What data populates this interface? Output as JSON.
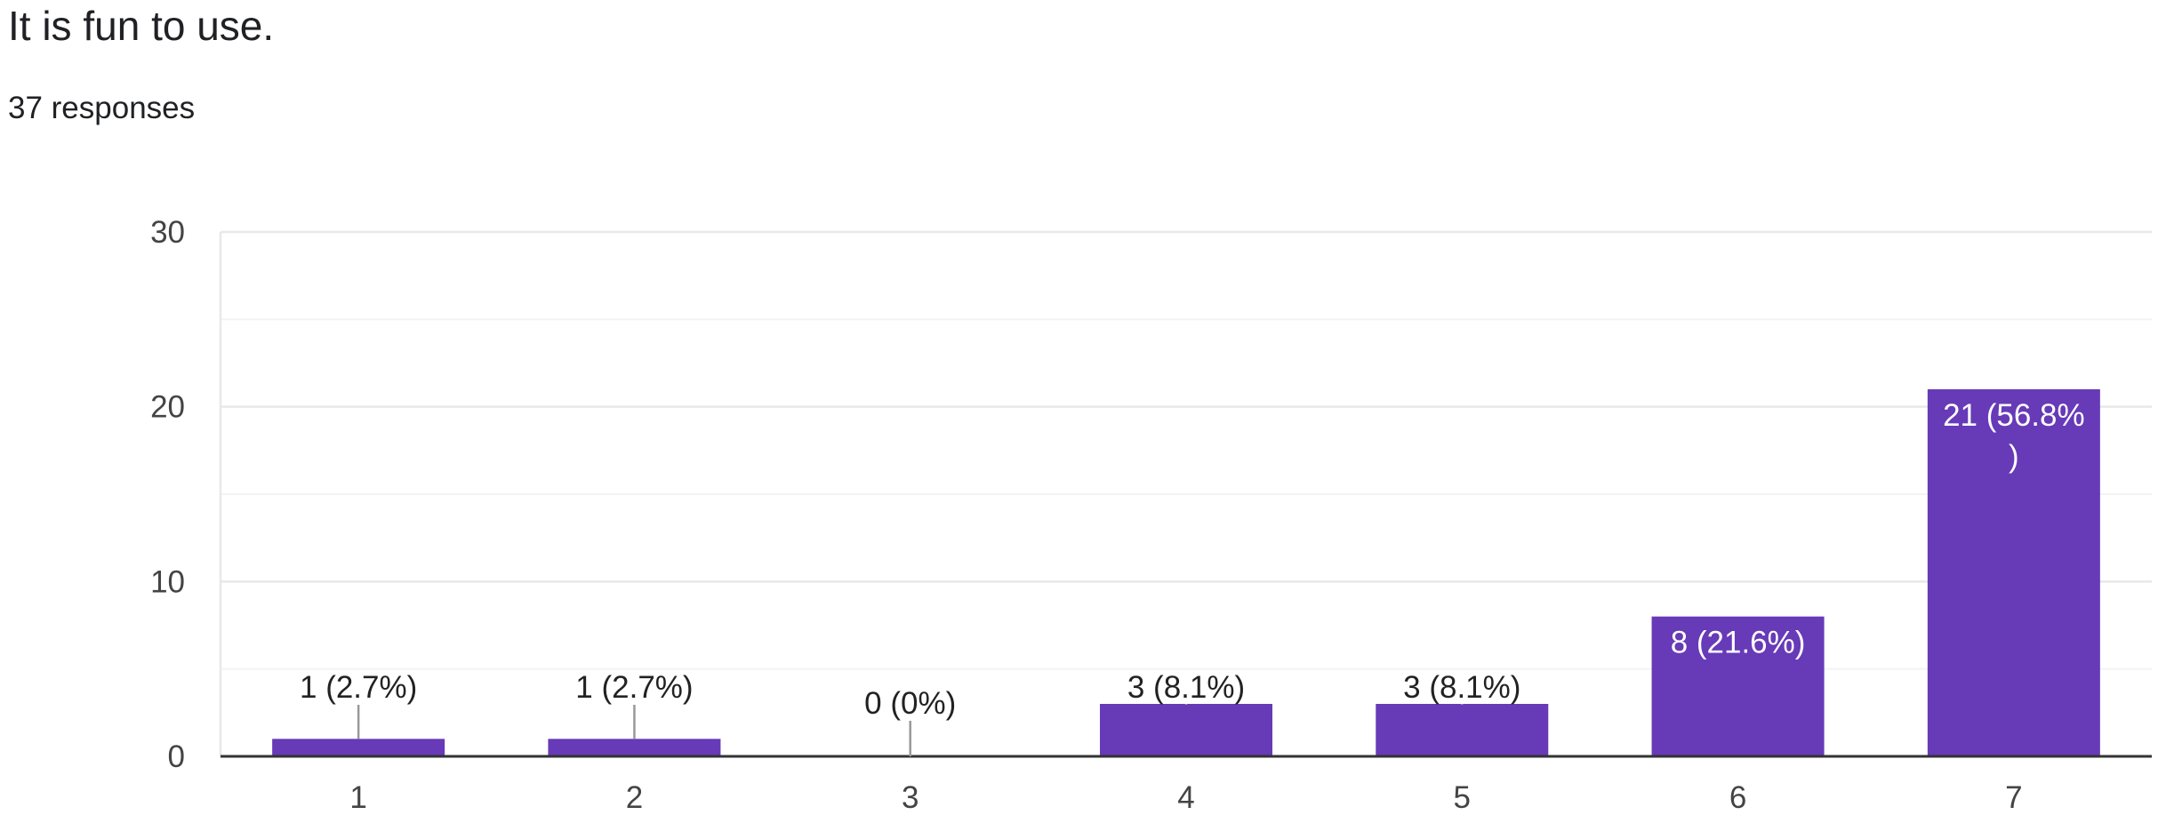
{
  "question": {
    "title": "It is fun to use.",
    "responses": "37 responses"
  },
  "colors": {
    "bar": "#673ab7",
    "gridline": "#e8e8e8",
    "minor_gridline": "#f3f3f3",
    "axis": "#333333",
    "outside_label": "#222222",
    "inside_label": "#ffffff",
    "leader_line": "#999999"
  },
  "chart_data": {
    "type": "bar",
    "categories": [
      "1",
      "2",
      "3",
      "4",
      "5",
      "6",
      "7"
    ],
    "values": [
      1,
      1,
      0,
      3,
      3,
      8,
      21
    ],
    "data_labels": [
      [
        "1 (2.7%)"
      ],
      [
        "1 (2.7%)"
      ],
      [
        "0 (0%)"
      ],
      [
        "3 (8.1%)"
      ],
      [
        "3 (8.1%)"
      ],
      [
        "8 (21.6%)"
      ],
      [
        "21 (56.8%",
        ")"
      ]
    ],
    "yticks": [
      "0",
      "10",
      "20",
      "30"
    ],
    "ylim": [
      0,
      30
    ],
    "grid": true,
    "legend": "none"
  }
}
